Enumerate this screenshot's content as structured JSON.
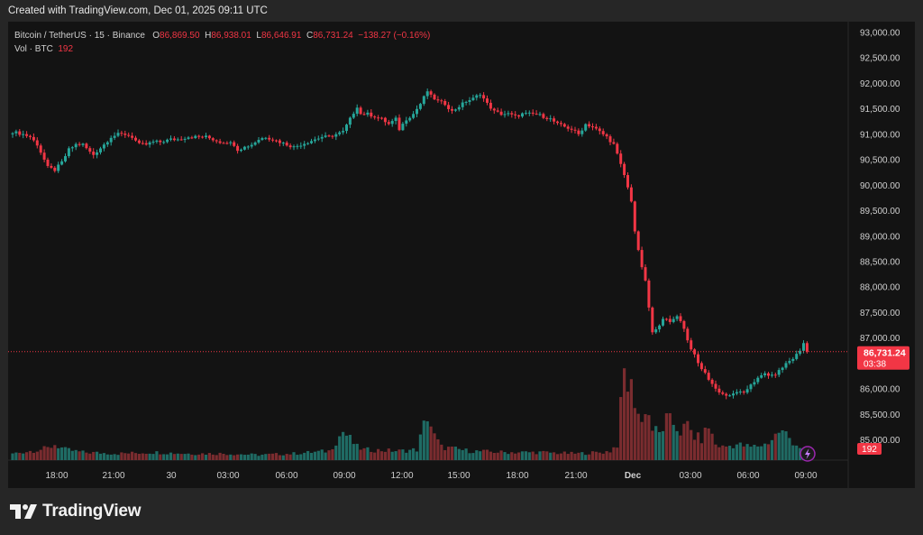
{
  "header": {
    "created_text": "Created with TradingView.com, Dec 01, 2025 09:11 UTC"
  },
  "legend": {
    "symbol": "Bitcoin / TetherUS · 15 · Binance",
    "open_label": "O",
    "open": "86,869.50",
    "high_label": "H",
    "high": "86,938.01",
    "low_label": "L",
    "low": "86,646.91",
    "close_label": "C",
    "close": "86,731.24",
    "change": "−138.27 (−0.16%)",
    "vol_label": "Vol · BTC",
    "vol_value": "192"
  },
  "price_badge": {
    "price": "86,731.24",
    "countdown": "03:38"
  },
  "volume_badge": "192",
  "brand": {
    "name": "TradingView",
    "logo": "tradingview-logo"
  },
  "icons": {
    "alert": "lightning-icon"
  },
  "colors": {
    "background": "#131313",
    "up": "#26a69a",
    "down": "#f23645",
    "up_volume": "#1f6b64",
    "down_volume": "#7a2c2f",
    "text": "#cfcfcf"
  },
  "chart_data": {
    "type": "candlestick",
    "interval": "15",
    "y_ticks": [
      "93,000.00",
      "92,500.00",
      "92,000.00",
      "91,500.00",
      "91,000.00",
      "90,500.00",
      "90,000.00",
      "89,500.00",
      "89,000.00",
      "88,500.00",
      "88,000.00",
      "87,500.00",
      "87,000.00",
      "86,500.00",
      "86,000.00",
      "85,500.00",
      "85,000.00"
    ],
    "ylim": [
      84800,
      93100
    ],
    "x_labels": [
      "18:00",
      "21:00",
      "30",
      "03:00",
      "06:00",
      "09:00",
      "12:00",
      "15:00",
      "18:00",
      "21:00",
      "Dec",
      "03:00",
      "06:00",
      "09:00"
    ],
    "last_price": 86731.24,
    "price_anchors": [
      [
        0,
        91050
      ],
      [
        3,
        91000
      ],
      [
        5,
        90950
      ],
      [
        7,
        90800
      ],
      [
        9,
        90500
      ],
      [
        10,
        90350
      ],
      [
        12,
        90300
      ],
      [
        14,
        90450
      ],
      [
        16,
        90700
      ],
      [
        18,
        90800
      ],
      [
        20,
        90800
      ],
      [
        22,
        90650
      ],
      [
        23,
        90600
      ],
      [
        26,
        90800
      ],
      [
        28,
        90950
      ],
      [
        30,
        91000
      ],
      [
        32,
        91000
      ],
      [
        34,
        90950
      ],
      [
        36,
        90800
      ],
      [
        38,
        90800
      ],
      [
        40,
        90850
      ],
      [
        42,
        90850
      ],
      [
        45,
        90900
      ],
      [
        47,
        90900
      ],
      [
        50,
        90950
      ],
      [
        52,
        90950
      ],
      [
        55,
        90950
      ],
      [
        57,
        90900
      ],
      [
        59,
        90850
      ],
      [
        61,
        90850
      ],
      [
        63,
        90800
      ],
      [
        64,
        90700
      ],
      [
        66,
        90750
      ],
      [
        68,
        90800
      ],
      [
        70,
        90900
      ],
      [
        72,
        90950
      ],
      [
        74,
        90900
      ],
      [
        76,
        90850
      ],
      [
        78,
        90800
      ],
      [
        80,
        90750
      ],
      [
        82,
        90800
      ],
      [
        84,
        90850
      ],
      [
        86,
        90900
      ],
      [
        88,
        90950
      ],
      [
        90,
        90950
      ],
      [
        92,
        91000
      ],
      [
        94,
        91050
      ],
      [
        96,
        91300
      ],
      [
        98,
        91550
      ],
      [
        99,
        91400
      ],
      [
        101,
        91400
      ],
      [
        103,
        91350
      ],
      [
        105,
        91300
      ],
      [
        107,
        91200
      ],
      [
        109,
        91300
      ],
      [
        110,
        91100
      ],
      [
        112,
        91300
      ],
      [
        114,
        91400
      ],
      [
        116,
        91600
      ],
      [
        118,
        91850
      ],
      [
        119,
        91750
      ],
      [
        121,
        91650
      ],
      [
        123,
        91600
      ],
      [
        125,
        91450
      ],
      [
        127,
        91550
      ],
      [
        129,
        91650
      ],
      [
        131,
        91700
      ],
      [
        133,
        91800
      ],
      [
        135,
        91600
      ],
      [
        137,
        91450
      ],
      [
        139,
        91400
      ],
      [
        141,
        91400
      ],
      [
        143,
        91350
      ],
      [
        145,
        91400
      ],
      [
        147,
        91400
      ],
      [
        149,
        91400
      ],
      [
        151,
        91350
      ],
      [
        153,
        91300
      ],
      [
        155,
        91200
      ],
      [
        157,
        91150
      ],
      [
        159,
        91100
      ],
      [
        161,
        91000
      ],
      [
        163,
        91200
      ],
      [
        165,
        91150
      ],
      [
        167,
        91050
      ],
      [
        169,
        90950
      ],
      [
        171,
        90800
      ],
      [
        172,
        90600
      ],
      [
        174,
        90200
      ],
      [
        176,
        89700
      ],
      [
        177,
        89100
      ],
      [
        178,
        88700
      ],
      [
        180,
        88100
      ],
      [
        181,
        87600
      ],
      [
        182,
        87100
      ],
      [
        183,
        87150
      ],
      [
        185,
        87400
      ],
      [
        187,
        87300
      ],
      [
        189,
        87450
      ],
      [
        191,
        87200
      ],
      [
        192,
        86950
      ],
      [
        193,
        86800
      ],
      [
        195,
        86500
      ],
      [
        197,
        86300
      ],
      [
        199,
        86100
      ],
      [
        200,
        86000
      ],
      [
        202,
        85900
      ],
      [
        204,
        85850
      ],
      [
        206,
        85950
      ],
      [
        208,
        85900
      ],
      [
        210,
        86100
      ],
      [
        212,
        86200
      ],
      [
        214,
        86300
      ],
      [
        216,
        86250
      ],
      [
        218,
        86350
      ],
      [
        220,
        86500
      ],
      [
        222,
        86600
      ],
      [
        224,
        86750
      ],
      [
        225,
        86900
      ],
      [
        226,
        86731.24
      ]
    ],
    "volume_profile": [
      [
        0,
        5
      ],
      [
        5,
        7
      ],
      [
        10,
        9
      ],
      [
        12,
        12
      ],
      [
        15,
        8
      ],
      [
        20,
        6
      ],
      [
        30,
        5
      ],
      [
        40,
        6
      ],
      [
        50,
        5
      ],
      [
        60,
        5
      ],
      [
        70,
        4
      ],
      [
        80,
        5
      ],
      [
        90,
        7
      ],
      [
        94,
        22
      ],
      [
        96,
        16
      ],
      [
        98,
        10
      ],
      [
        100,
        8
      ],
      [
        110,
        7
      ],
      [
        115,
        8
      ],
      [
        118,
        35
      ],
      [
        120,
        18
      ],
      [
        122,
        10
      ],
      [
        130,
        7
      ],
      [
        140,
        6
      ],
      [
        150,
        6
      ],
      [
        160,
        5
      ],
      [
        168,
        6
      ],
      [
        170,
        7
      ],
      [
        172,
        12
      ],
      [
        174,
        66
      ],
      [
        175,
        58
      ],
      [
        176,
        54
      ],
      [
        177,
        48
      ],
      [
        178,
        36
      ],
      [
        179,
        28
      ],
      [
        180,
        42
      ],
      [
        181,
        34
      ],
      [
        182,
        24
      ],
      [
        184,
        20
      ],
      [
        186,
        30
      ],
      [
        188,
        28
      ],
      [
        190,
        22
      ],
      [
        192,
        26
      ],
      [
        194,
        18
      ],
      [
        196,
        16
      ],
      [
        198,
        26
      ],
      [
        200,
        12
      ],
      [
        202,
        10
      ],
      [
        206,
        12
      ],
      [
        210,
        10
      ],
      [
        214,
        12
      ],
      [
        216,
        16
      ],
      [
        218,
        22
      ],
      [
        220,
        20
      ],
      [
        222,
        14
      ],
      [
        224,
        10
      ],
      [
        226,
        6
      ]
    ]
  }
}
